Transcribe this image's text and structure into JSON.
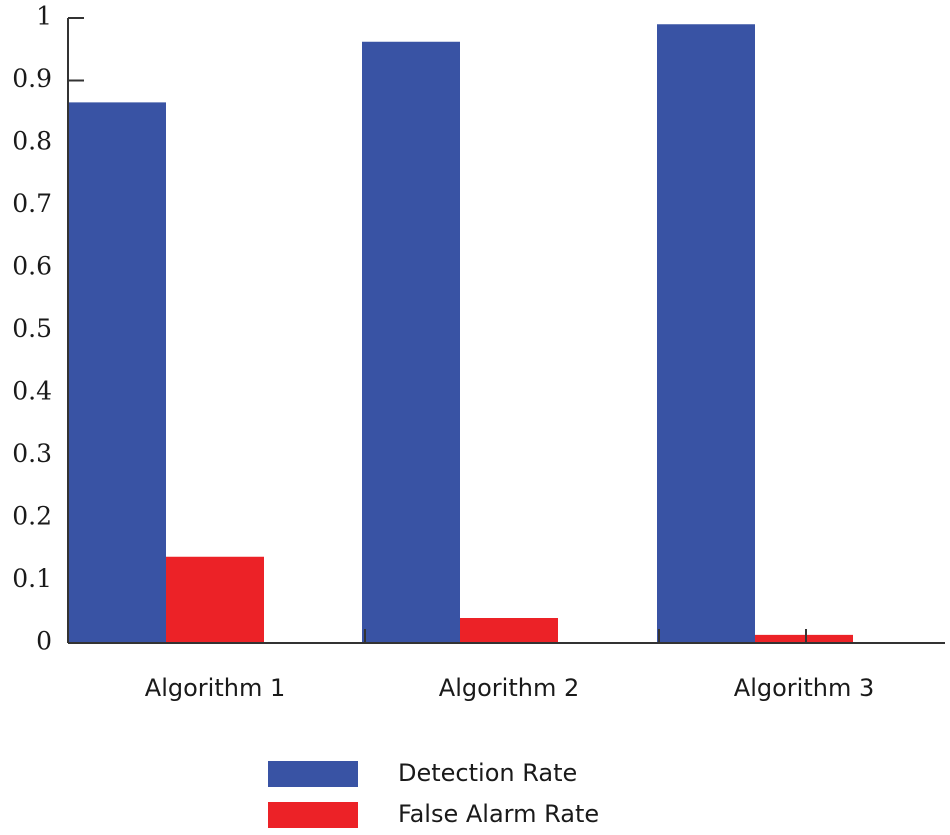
{
  "chart_data": {
    "type": "bar",
    "title": "",
    "xlabel": "",
    "ylabel": "",
    "ylim": [
      0,
      1
    ],
    "yticks": [
      0,
      0.1,
      0.2,
      0.3,
      0.4,
      0.5,
      0.6,
      0.7,
      0.8,
      0.9,
      1
    ],
    "ytick_labels": [
      "0",
      "0.1",
      "0.2",
      "0.3",
      "0.4",
      "0.5",
      "0.6",
      "0.7",
      "0.8",
      "0.9",
      "1"
    ],
    "categories": [
      "Algorithm 1",
      "Algorithm 2",
      "Algorithm 3"
    ],
    "series": [
      {
        "name": "Detection Rate",
        "color": "#3953a4",
        "values": [
          0.865,
          0.962,
          0.99
        ]
      },
      {
        "name": "False Alarm Rate",
        "color": "#ec2227",
        "values": [
          0.138,
          0.04,
          0.013
        ]
      }
    ],
    "legend_position": "bottom",
    "grid": false
  }
}
